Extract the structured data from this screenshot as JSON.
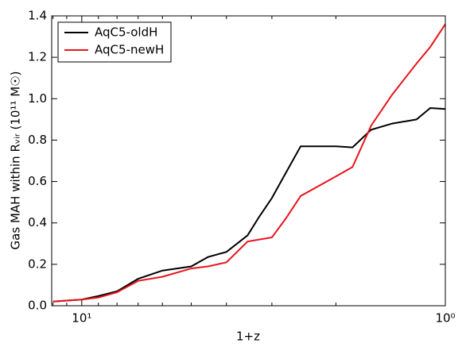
{
  "chart_data": {
    "type": "line",
    "xlabel": "1+z",
    "ylabel": "Gas MAH within Rᵥᵢᵣ (10¹¹  M☉)",
    "x": [
      12,
      11,
      10,
      9,
      8,
      7,
      6,
      5,
      4.5,
      4,
      3.5,
      3.25,
      3,
      2.75,
      2.5,
      2,
      1.8,
      1.6,
      1.4,
      1.2,
      1.1,
      1
    ],
    "series": [
      {
        "name": "AqC5-oldH",
        "color": "#000000",
        "values": [
          0.02,
          0.025,
          0.03,
          0.047,
          0.07,
          0.13,
          0.17,
          0.19,
          0.235,
          0.26,
          0.34,
          0.43,
          0.52,
          0.64,
          0.77,
          0.77,
          0.765,
          0.85,
          0.88,
          0.9,
          0.955,
          0.95
        ]
      },
      {
        "name": "AqC5-newH",
        "color": "#e8141c",
        "values": [
          0.02,
          0.025,
          0.03,
          0.04,
          0.065,
          0.12,
          0.14,
          0.18,
          0.19,
          0.21,
          0.31,
          0.32,
          0.33,
          0.42,
          0.53,
          0.625,
          0.67,
          0.87,
          1.02,
          1.17,
          1.25,
          1.36
        ]
      }
    ],
    "xscale": "log",
    "xreversed": true,
    "xlim": [
      12.1,
      1
    ],
    "xticks": [
      {
        "value": 10,
        "label": "10¹"
      },
      {
        "value": 1,
        "label": "10⁰"
      }
    ],
    "xminorticks": [
      12,
      11,
      9,
      8,
      7,
      6,
      5,
      4,
      3,
      2
    ],
    "ylim": [
      0,
      1.4
    ],
    "yticks": [
      {
        "value": 0,
        "label": "0.0"
      },
      0.2,
      0.4,
      0.6,
      0.8,
      {
        "value": 1,
        "label": "1.0"
      },
      1.2,
      1.4
    ],
    "legend": "upper left"
  }
}
